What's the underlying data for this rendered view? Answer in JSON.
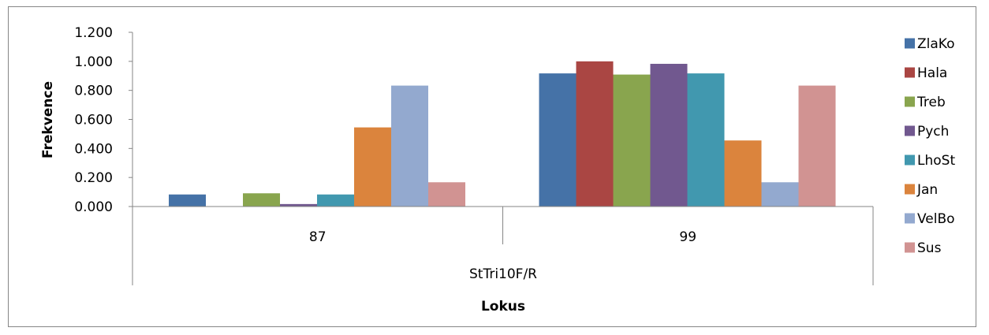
{
  "chart_data": {
    "type": "bar",
    "title": "",
    "xlabel": "Lokus",
    "ylabel": "Frekvence",
    "group_label": "StTri10F/R",
    "categories": [
      "87",
      "99"
    ],
    "ylim": [
      0,
      1.2
    ],
    "yticks": [
      "0.000",
      "0.200",
      "0.400",
      "0.600",
      "0.800",
      "1.000",
      "1.200"
    ],
    "grid": false,
    "legend_position": "right",
    "series": [
      {
        "name": "ZlaKo",
        "color": "#4572A7",
        "values": [
          0.083,
          0.917
        ]
      },
      {
        "name": "Hala",
        "color": "#AA4643",
        "values": [
          0.0,
          1.0
        ]
      },
      {
        "name": "Treb",
        "color": "#89A54E",
        "values": [
          0.091,
          0.909
        ]
      },
      {
        "name": "Pych",
        "color": "#71588F",
        "values": [
          0.017,
          0.983
        ]
      },
      {
        "name": "LhoSt",
        "color": "#4198AF",
        "values": [
          0.083,
          0.917
        ]
      },
      {
        "name": "Jan",
        "color": "#DB843D",
        "values": [
          0.545,
          0.455
        ]
      },
      {
        "name": "VelBo",
        "color": "#93A9CF",
        "values": [
          0.833,
          0.167
        ]
      },
      {
        "name": "Sus",
        "color": "#D19392",
        "values": [
          0.167,
          0.833
        ]
      }
    ]
  }
}
